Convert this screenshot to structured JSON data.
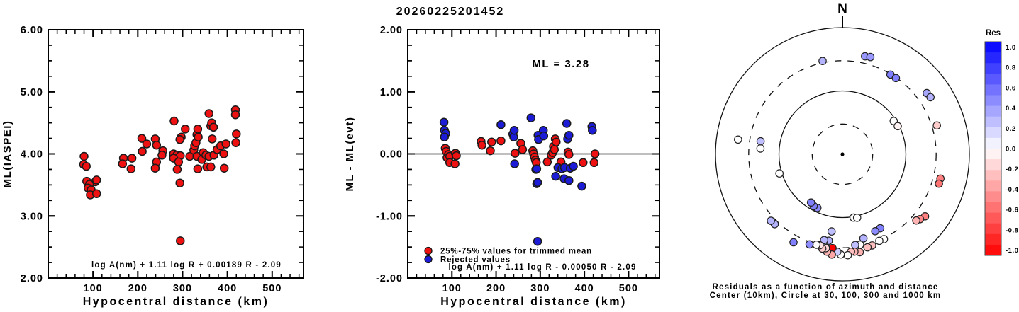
{
  "title": "20260225201452",
  "colors": {
    "accepted_red": "#ee1111",
    "rejected_blue": "#1c1cd6",
    "marker_outline": "#1a1a1a",
    "axis": "#000000",
    "background": "#ffffff"
  },
  "chart_data": [
    {
      "type": "scatter",
      "id": "ml-vs-distance",
      "xlabel": "Hypocentral distance (km)",
      "ylabel": "ML(IASPEI)",
      "xlim": [
        0,
        570
      ],
      "ylim": [
        2,
        6
      ],
      "xticks": [
        100,
        200,
        300,
        400,
        500
      ],
      "yticks": [
        2,
        3,
        4,
        5,
        6
      ],
      "x_minor_step": 20,
      "y_minor_step": 0.25,
      "y_decimals": 2,
      "grid": false,
      "formula": "log A(nm) + 1.11 log R + 0.00189 R - 2.09",
      "series": [
        {
          "name": "station ML values",
          "color": "#ee1111",
          "points": [
            [
              80,
              3.96
            ],
            [
              79,
              3.83
            ],
            [
              85,
              3.8
            ],
            [
              86,
              3.56
            ],
            [
              105,
              3.55
            ],
            [
              108,
              3.58
            ],
            [
              92,
              3.51
            ],
            [
              89,
              3.45
            ],
            [
              96,
              3.42
            ],
            [
              94,
              3.34
            ],
            [
              108,
              3.36
            ],
            [
              168,
              3.93
            ],
            [
              166,
              3.84
            ],
            [
              187,
              3.93
            ],
            [
              185,
              3.76
            ],
            [
              209,
              4.25
            ],
            [
              220,
              4.16
            ],
            [
              210,
              4.04
            ],
            [
              239,
              4.24
            ],
            [
              242,
              4.14
            ],
            [
              256,
              4.05
            ],
            [
              254,
              3.98
            ],
            [
              242,
              3.87
            ],
            [
              239,
              3.77
            ],
            [
              281,
              4.53
            ],
            [
              297,
              4.27
            ],
            [
              294,
              4.23
            ],
            [
              306,
              4.4
            ],
            [
              280,
              4.0
            ],
            [
              287,
              3.98
            ],
            [
              295,
              3.97
            ],
            [
              280,
              3.93
            ],
            [
              291,
              3.87
            ],
            [
              288,
              3.75
            ],
            [
              294,
              3.53
            ],
            [
              316,
              3.96
            ],
            [
              325,
              4.06
            ],
            [
              327,
              4.13
            ],
            [
              330,
              4.18
            ],
            [
              332,
              4.31
            ],
            [
              334,
              4.4
            ],
            [
              335,
              4.27
            ],
            [
              332,
              3.96
            ],
            [
              334,
              3.76
            ],
            [
              343,
              3.91
            ],
            [
              346,
              4.02
            ],
            [
              352,
              3.98
            ],
            [
              354,
              3.79
            ],
            [
              359,
              4.65
            ],
            [
              359,
              3.96
            ],
            [
              363,
              4.45
            ],
            [
              363,
              3.79
            ],
            [
              365,
              4.5
            ],
            [
              366,
              4.24
            ],
            [
              369,
              4.43
            ],
            [
              370,
              3.98
            ],
            [
              377,
              4.07
            ],
            [
              385,
              4.13
            ],
            [
              392,
              4.0
            ],
            [
              393,
              3.77
            ],
            [
              397,
              4.16
            ],
            [
              418,
              4.71
            ],
            [
              418,
              4.63
            ],
            [
              420,
              4.32
            ],
            [
              419,
              4.18
            ],
            [
              295,
              2.6
            ]
          ]
        }
      ]
    },
    {
      "type": "scatter",
      "id": "residual-vs-distance",
      "xlabel": "Hypocentral distance (km)",
      "ylabel": "ML - ML(evt)",
      "xlim": [
        0,
        570
      ],
      "ylim": [
        -2,
        2
      ],
      "xticks": [
        100,
        200,
        300,
        400,
        500
      ],
      "yticks": [
        -2,
        -1,
        0,
        1,
        2
      ],
      "x_minor_step": 20,
      "y_minor_step": 0.25,
      "y_decimals": 2,
      "grid": false,
      "hline": 0,
      "ml_annotation": "ML = 3.28",
      "formula": "log A(nm) + 1.11 log R - 0.00050 R - 2.09",
      "legend": [
        {
          "label": "25%-75% values for trimmed mean",
          "color": "#ee1111"
        },
        {
          "label": "Rejected values",
          "color": "#1c1cd6"
        }
      ],
      "series": [
        {
          "name": "25%-75% values for trimmed mean",
          "color": "#ee1111",
          "points": [
            [
              85,
              0.09
            ],
            [
              87,
              0.04
            ],
            [
              92,
              -0.01
            ],
            [
              89,
              -0.06
            ],
            [
              95,
              -0.04
            ],
            [
              108,
              0.01
            ],
            [
              110,
              -0.03
            ],
            [
              95,
              -0.14
            ],
            [
              107,
              -0.16
            ],
            [
              166,
              0.2
            ],
            [
              168,
              0.14
            ],
            [
              190,
              0.19
            ],
            [
              187,
              0.05
            ],
            [
              211,
              0.21
            ],
            [
              243,
              0.01
            ],
            [
              256,
              0.17
            ],
            [
              260,
              0.07
            ],
            [
              283,
              0.05
            ],
            [
              285,
              0.0
            ],
            [
              287,
              -0.05
            ],
            [
              289,
              -0.1
            ],
            [
              291,
              -0.14
            ],
            [
              316,
              -0.13
            ],
            [
              325,
              -0.02
            ],
            [
              328,
              0.02
            ],
            [
              330,
              0.12
            ],
            [
              332,
              0.07
            ],
            [
              334,
              0.24
            ],
            [
              336,
              0.19
            ],
            [
              347,
              -0.13
            ],
            [
              363,
              0.03
            ],
            [
              365,
              -0.01
            ],
            [
              397,
              -0.14
            ],
            [
              424,
              0.0
            ],
            [
              422,
              -0.14
            ]
          ]
        },
        {
          "name": "Rejected values",
          "color": "#1c1cd6",
          "points": [
            [
              82,
              0.51
            ],
            [
              83,
              0.38
            ],
            [
              86,
              0.33
            ],
            [
              83,
              0.27
            ],
            [
              211,
              0.47
            ],
            [
              238,
              0.32
            ],
            [
              240,
              0.27
            ],
            [
              241,
              0.38
            ],
            [
              242,
              -0.16
            ],
            [
              279,
              0.58
            ],
            [
              290,
              -0.25
            ],
            [
              292,
              -0.24
            ],
            [
              292,
              -0.48
            ],
            [
              294,
              -0.46
            ],
            [
              294,
              -1.41
            ],
            [
              295,
              0.3
            ],
            [
              296,
              0.23
            ],
            [
              307,
              0.38
            ],
            [
              308,
              0.29
            ],
            [
              335,
              -0.36
            ],
            [
              340,
              -0.22
            ],
            [
              349,
              -0.24
            ],
            [
              354,
              -0.4
            ],
            [
              355,
              -0.22
            ],
            [
              360,
              0.49
            ],
            [
              362,
              0.24
            ],
            [
              365,
              0.3
            ],
            [
              365,
              -0.43
            ],
            [
              368,
              -0.23
            ],
            [
              375,
              -0.2
            ],
            [
              394,
              -0.52
            ],
            [
              417,
              0.44
            ],
            [
              418,
              0.38
            ]
          ]
        }
      ]
    },
    {
      "type": "polar_scatter",
      "id": "azimuth-residual-polar",
      "north_label": "N",
      "caption1": "Residuals as a function of azimuth and distance",
      "caption2": "Center (10km), Circle at 30, 100, 300 and 1000 km",
      "center_km": 10,
      "rings": [
        {
          "km": 30,
          "style": "dashed"
        },
        {
          "km": 100,
          "style": "solid"
        },
        {
          "km": 300,
          "style": "dashed"
        },
        {
          "km": 1000,
          "style": "solid"
        }
      ],
      "colorbar": {
        "title": "Res",
        "max": 1.0,
        "min": -1.0,
        "segments": 20,
        "labels": [
          "1.0",
          "0.8",
          "0.6",
          "0.4",
          "0.2",
          "0.0",
          "-0.2",
          "-0.4",
          "-0.6",
          "-0.8",
          "-1.0"
        ]
      },
      "points": [
        {
          "az": 348,
          "km": 320,
          "res": 0.3
        },
        {
          "az": 13,
          "km": 386,
          "res": 0.4
        },
        {
          "az": 16,
          "km": 395,
          "res": 0.4
        },
        {
          "az": 31,
          "km": 294,
          "res": 0.5
        },
        {
          "az": 35,
          "km": 294,
          "res": 0.5
        },
        {
          "az": 54,
          "km": 438,
          "res": 0.35
        },
        {
          "az": 57,
          "km": 451,
          "res": 0.3
        },
        {
          "az": 57,
          "km": 92,
          "res": 0.0
        },
        {
          "az": 63,
          "km": 95,
          "res": -0.05
        },
        {
          "az": 73,
          "km": 360,
          "res": -0.2
        },
        {
          "az": 104,
          "km": 390,
          "res": -0.5
        },
        {
          "az": 107,
          "km": 389,
          "res": -0.55
        },
        {
          "az": 127,
          "km": 427,
          "res": -0.5
        },
        {
          "az": 130,
          "km": 394,
          "res": -0.45
        },
        {
          "az": 132,
          "km": 367,
          "res": -0.3
        },
        {
          "az": 153,
          "km": 205,
          "res": 0.5
        },
        {
          "az": 154,
          "km": 310,
          "res": 0.0
        },
        {
          "az": 157,
          "km": 209,
          "res": 0.45
        },
        {
          "az": 157,
          "km": 306,
          "res": 0.0
        },
        {
          "az": 162,
          "km": 327,
          "res": -0.25
        },
        {
          "az": 165,
          "km": 333,
          "res": -0.25
        },
        {
          "az": 166,
          "km": 234,
          "res": 0.3
        },
        {
          "az": 169,
          "km": 285,
          "res": 0.0
        },
        {
          "az": 170,
          "km": 104,
          "res": 0.0
        },
        {
          "az": 167,
          "km": 107,
          "res": 0.0
        },
        {
          "az": 170,
          "km": 372,
          "res": -0.3
        },
        {
          "az": 172,
          "km": 281,
          "res": 0.25
        },
        {
          "az": 173,
          "km": 355,
          "res": -0.3
        },
        {
          "az": 175,
          "km": 351,
          "res": -0.25
        },
        {
          "az": 177,
          "km": 395,
          "res": 0.0
        },
        {
          "az": 181,
          "km": 382,
          "res": 0.0
        },
        {
          "az": 183,
          "km": 348,
          "res": 0.2
        },
        {
          "az": 186,
          "km": 310,
          "res": -1.0
        },
        {
          "az": 186,
          "km": 392,
          "res": -0.35
        },
        {
          "az": 188,
          "km": 170,
          "res": 0.25
        },
        {
          "az": 189,
          "km": 241,
          "res": 0.3
        },
        {
          "az": 189,
          "km": 361,
          "res": -0.3
        },
        {
          "az": 190,
          "km": 321,
          "res": -0.15
        },
        {
          "az": 192,
          "km": 243,
          "res": 0.3
        },
        {
          "az": 192,
          "km": 334,
          "res": -0.2
        },
        {
          "az": 194,
          "km": 303,
          "res": -0.1
        },
        {
          "az": 196,
          "km": 307,
          "res": 0.0
        },
        {
          "az": 200,
          "km": 327,
          "res": 0.45
        },
        {
          "az": 205,
          "km": 86,
          "res": 0.45
        },
        {
          "az": 209,
          "km": 86,
          "res": 0.5
        },
        {
          "az": 209,
          "km": 390,
          "res": 0.5
        },
        {
          "az": 213,
          "km": 81,
          "res": 0.5
        },
        {
          "az": 224,
          "km": 343,
          "res": 0.3
        },
        {
          "az": 227,
          "km": 348,
          "res": 0.3
        },
        {
          "az": 253,
          "km": 109,
          "res": 0.0
        },
        {
          "az": 274,
          "km": 197,
          "res": 0.0
        },
        {
          "az": 278,
          "km": 458,
          "res": 0.0
        },
        {
          "az": 279,
          "km": 202,
          "res": 0.25
        }
      ]
    }
  ]
}
